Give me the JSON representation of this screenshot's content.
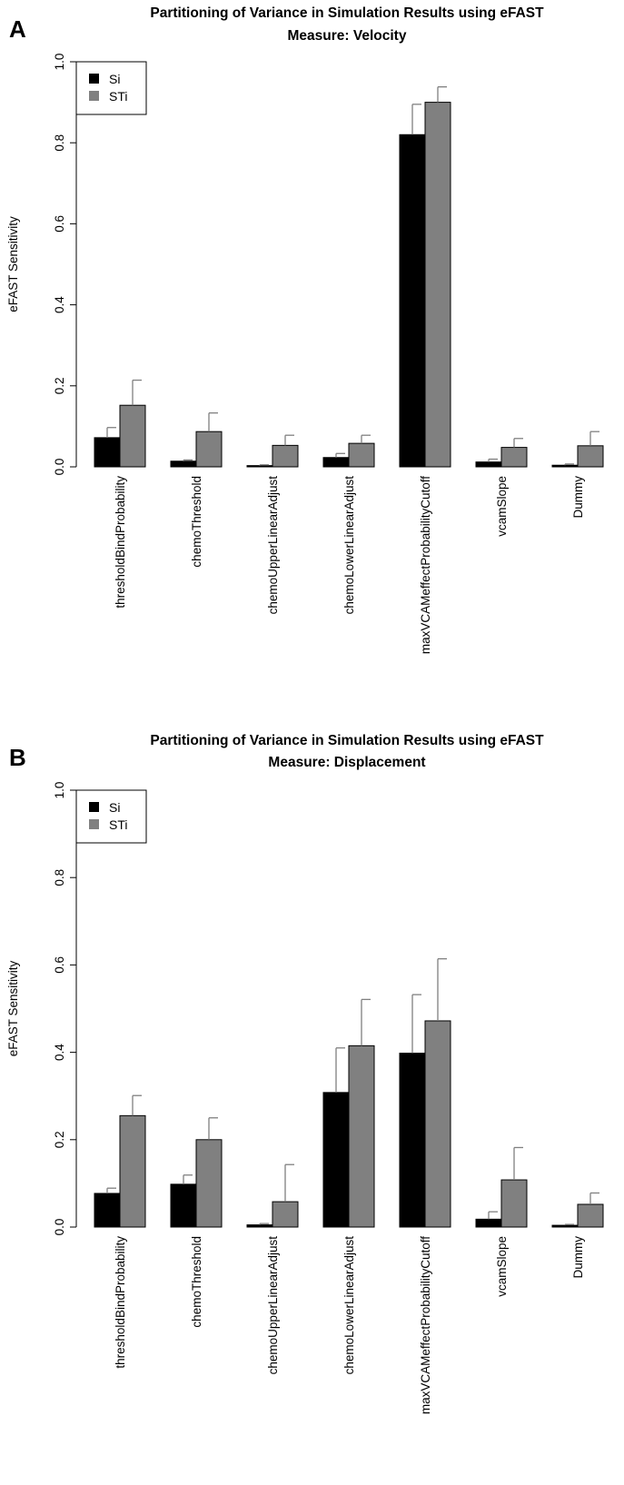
{
  "colors": {
    "si": "#000000",
    "sti": "#808080",
    "error": "#808080",
    "axis": "#000000"
  },
  "chart_data": [
    {
      "type": "bar",
      "panel_label": "A",
      "title": "Partitioning of Variance in Simulation Results using eFAST",
      "subtitle": "Measure: Velocity",
      "ylabel": "eFAST Sensitivity",
      "xlabel": "",
      "ylim": [
        0,
        1.0
      ],
      "yticks": [
        "0.0",
        "0.2",
        "0.4",
        "0.6",
        "0.8",
        "1.0"
      ],
      "yticks_values": [
        0,
        0.2,
        0.4,
        0.6,
        0.8,
        1.0
      ],
      "legend": [
        "Si",
        "STi"
      ],
      "categories": [
        "thresholdBindProbability",
        "chemoThreshold",
        "chemoUpperLinearAdjust",
        "chemoLowerLinearAdjust",
        "maxVCAMeffectProbabilityCutoff",
        "vcamSlope",
        "Dummy"
      ],
      "series": [
        {
          "name": "Si",
          "values": [
            0.072,
            0.014,
            0.003,
            0.023,
            0.82,
            0.012,
            0.004
          ],
          "errors": [
            0.025,
            0.003,
            0.002,
            0.01,
            0.075,
            0.007,
            0.003
          ]
        },
        {
          "name": "STi",
          "values": [
            0.152,
            0.087,
            0.053,
            0.058,
            0.9,
            0.048,
            0.052
          ],
          "errors": [
            0.062,
            0.046,
            0.025,
            0.02,
            0.038,
            0.022,
            0.035
          ]
        }
      ]
    },
    {
      "type": "bar",
      "panel_label": "B",
      "title": "Partitioning of Variance in Simulation Results using eFAST",
      "subtitle": "Measure: Displacement",
      "ylabel": "eFAST Sensitivity",
      "xlabel": "",
      "ylim": [
        0,
        1.0
      ],
      "yticks": [
        "0.0",
        "0.2",
        "0.4",
        "0.6",
        "0.8",
        "1.0"
      ],
      "yticks_values": [
        0,
        0.2,
        0.4,
        0.6,
        0.8,
        1.0
      ],
      "legend": [
        "Si",
        "STi"
      ],
      "categories": [
        "thresholdBindProbability",
        "chemoThreshold",
        "chemoUpperLinearAdjust",
        "chemoLowerLinearAdjust",
        "maxVCAMeffectProbabilityCutoff",
        "vcamSlope",
        "Dummy"
      ],
      "series": [
        {
          "name": "Si",
          "values": [
            0.077,
            0.098,
            0.005,
            0.308,
            0.398,
            0.018,
            0.004
          ],
          "errors": [
            0.012,
            0.021,
            0.003,
            0.102,
            0.134,
            0.017,
            0.002
          ]
        },
        {
          "name": "STi",
          "values": [
            0.255,
            0.2,
            0.058,
            0.415,
            0.472,
            0.108,
            0.052
          ],
          "errors": [
            0.046,
            0.05,
            0.085,
            0.106,
            0.142,
            0.074,
            0.026
          ]
        }
      ]
    }
  ]
}
